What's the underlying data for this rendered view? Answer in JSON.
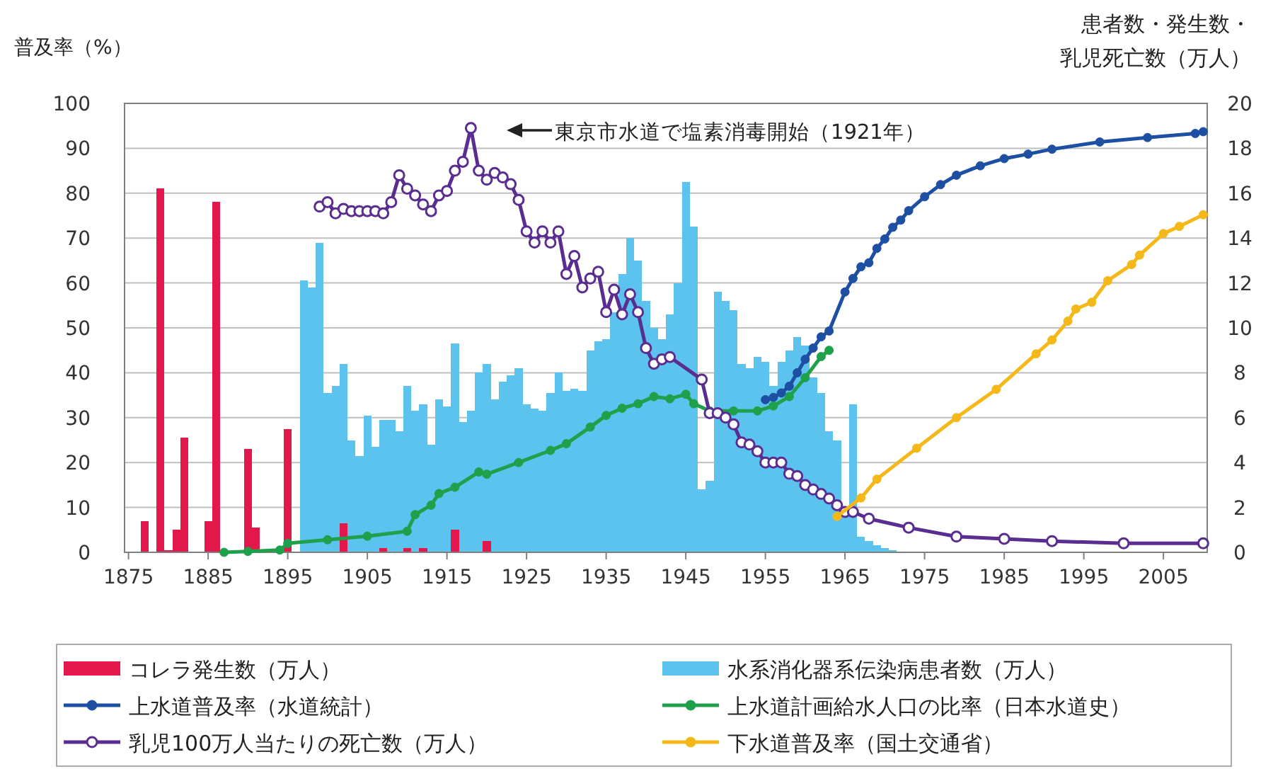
{
  "chart_data": {
    "type": "line",
    "ylabel": "普及率（%）",
    "y2label": "患者数・発生数・乳児死亡数（万人）",
    "xlim": [
      1874.5,
      2010.5
    ],
    "xticks": [
      1875,
      1885,
      1895,
      1905,
      1915,
      1925,
      1935,
      1945,
      1955,
      1965,
      1975,
      1985,
      1995,
      2005
    ],
    "ylim": [
      0,
      100
    ],
    "yticks": [
      0,
      10,
      20,
      30,
      40,
      50,
      60,
      70,
      80,
      90,
      100
    ],
    "y2lim": [
      0,
      20
    ],
    "y2ticks": [
      0,
      2,
      4,
      6,
      8,
      10,
      12,
      14,
      16,
      18,
      20
    ],
    "grid": "y",
    "legend": "bottom",
    "marker": "circle",
    "annotations": [
      "東京市水道で塩素消毒開始（1921年）"
    ],
    "series": [
      {
        "name": "コレラ発生数（万人）",
        "type": "bar",
        "axis": "y2",
        "color": "#e2184c",
        "x": [
          1877,
          1879,
          1880,
          1881,
          1882,
          1885,
          1886,
          1890,
          1891,
          1895,
          1902,
          1907,
          1910,
          1912,
          1916,
          1920
        ],
        "values": [
          1.4,
          16.2,
          0.1,
          1.0,
          5.1,
          1.4,
          15.6,
          4.6,
          1.1,
          5.5,
          1.3,
          0.2,
          0.2,
          0.2,
          1.0,
          0.5
        ]
      },
      {
        "name": "水系消化器系伝染病患者数（万人）",
        "type": "bar",
        "axis": "y2",
        "color": "#5bc3ee",
        "x": [
          1897,
          1898,
          1899,
          1900,
          1901,
          1902,
          1903,
          1904,
          1905,
          1906,
          1907,
          1908,
          1909,
          1910,
          1911,
          1912,
          1913,
          1914,
          1915,
          1916,
          1917,
          1918,
          1919,
          1920,
          1921,
          1922,
          1923,
          1924,
          1925,
          1926,
          1927,
          1928,
          1929,
          1930,
          1931,
          1932,
          1933,
          1934,
          1935,
          1936,
          1937,
          1938,
          1939,
          1940,
          1941,
          1942,
          1943,
          1944,
          1945,
          1946,
          1947,
          1948,
          1949,
          1950,
          1951,
          1952,
          1953,
          1954,
          1955,
          1956,
          1957,
          1958,
          1959,
          1960,
          1961,
          1962,
          1963,
          1964,
          1965,
          1966,
          1967,
          1968,
          1969,
          1970,
          1971
        ],
        "values": [
          12.1,
          11.8,
          13.8,
          7.1,
          7.4,
          8.4,
          5.0,
          4.3,
          6.1,
          4.7,
          5.9,
          5.9,
          5.4,
          7.4,
          6.3,
          6.6,
          4.8,
          6.8,
          6.5,
          9.3,
          5.8,
          6.3,
          8.0,
          8.4,
          6.8,
          7.6,
          7.9,
          8.2,
          6.6,
          6.4,
          6.3,
          7.1,
          8.0,
          7.2,
          7.3,
          7.2,
          9.0,
          9.4,
          9.5,
          10.7,
          12.4,
          14.0,
          13.0,
          11.2,
          10.0,
          9.5,
          10.6,
          12.0,
          16.5,
          14.5,
          2.8,
          3.2,
          11.6,
          11.2,
          10.8,
          8.4,
          8.2,
          8.7,
          8.5,
          7.4,
          8.5,
          9.0,
          9.6,
          9.2,
          7.8,
          7.1,
          5.4,
          5.0,
          1.8,
          6.6,
          0.7,
          0.5,
          0.3,
          0.2,
          0.1
        ]
      },
      {
        "name": "上水道普及率（水道統計）",
        "color": "#1d4fa3",
        "x": [
          1955,
          1956,
          1957,
          1958,
          1959,
          1960,
          1961,
          1962,
          1963,
          1965,
          1966,
          1967,
          1968,
          1969,
          1970,
          1971,
          1972,
          1973,
          1975,
          1977,
          1979,
          1982,
          1985,
          1988,
          1991,
          1997,
          2003,
          2009,
          2010
        ],
        "values": [
          34,
          34.5,
          35.5,
          37,
          40,
          43,
          45.5,
          48,
          49.3,
          58,
          61,
          63.6,
          64.5,
          67.7,
          69.8,
          72.4,
          74,
          76.1,
          79.2,
          81.9,
          84,
          86.1,
          87.7,
          88.7,
          89.8,
          91.4,
          92.4,
          93.3,
          93.7
        ]
      },
      {
        "name": "上水道計画給水人口の比率（日本水道史）",
        "color": "#1fa04a",
        "x": [
          1887,
          1890,
          1894,
          1895,
          1900,
          1905,
          1910,
          1911,
          1913,
          1914,
          1916,
          1919,
          1920,
          1924,
          1928,
          1930,
          1933,
          1935,
          1937,
          1939,
          1941,
          1943,
          1945,
          1946,
          1948,
          1951,
          1954,
          1956,
          1958,
          1960,
          1962,
          1963
        ],
        "values": [
          0,
          0.2,
          0.5,
          2,
          2.8,
          3.6,
          4.7,
          8.4,
          10.5,
          13.1,
          14.5,
          17.9,
          17.4,
          20,
          22.7,
          24.2,
          27.9,
          30.5,
          32.1,
          33.1,
          34.7,
          34.2,
          35.2,
          33.1,
          31.5,
          31.5,
          31.5,
          32.6,
          34.7,
          38.9,
          43.6,
          45
        ]
      },
      {
        "name": "乳児100万人当たりの死亡数（万人）",
        "axis": "y2",
        "color": "#5a2d91",
        "x": [
          1899,
          1900,
          1901,
          1902,
          1903,
          1904,
          1905,
          1906,
          1907,
          1908,
          1909,
          1910,
          1911,
          1912,
          1913,
          1914,
          1915,
          1916,
          1917,
          1918,
          1919,
          1920,
          1921,
          1922,
          1923,
          1924,
          1925,
          1926,
          1927,
          1928,
          1929,
          1930,
          1931,
          1932,
          1933,
          1934,
          1935,
          1936,
          1937,
          1938,
          1939,
          1940,
          1941,
          1942,
          1943,
          1947,
          1948,
          1949,
          1950,
          1951,
          1952,
          1953,
          1954,
          1955,
          1956,
          1957,
          1958,
          1959,
          1960,
          1961,
          1962,
          1963,
          1964,
          1965,
          1966,
          1968,
          1973,
          1979,
          1985,
          1991,
          2000,
          2010
        ],
        "values": [
          15.4,
          15.6,
          15.1,
          15.3,
          15.2,
          15.2,
          15.2,
          15.2,
          15.1,
          15.6,
          16.8,
          16.2,
          15.9,
          15.5,
          15.2,
          15.9,
          16.1,
          17.0,
          17.4,
          18.9,
          17.0,
          16.6,
          16.9,
          16.7,
          16.4,
          15.7,
          14.3,
          13.8,
          14.3,
          13.8,
          14.3,
          12.4,
          13.2,
          11.8,
          12.2,
          12.5,
          10.7,
          11.7,
          10.6,
          11.5,
          10.7,
          9.1,
          8.4,
          8.6,
          8.7,
          7.7,
          6.2,
          6.2,
          6.0,
          5.7,
          4.9,
          4.8,
          4.5,
          4.0,
          4.0,
          4.0,
          3.5,
          3.4,
          3.0,
          2.8,
          2.6,
          2.4,
          2.1,
          1.8,
          1.8,
          1.5,
          1.1,
          0.7,
          0.6,
          0.5,
          0.4,
          0.4
        ]
      },
      {
        "name": "下水道普及率（国土交通省）",
        "color": "#f5b819",
        "x": [
          1964,
          1967,
          1969,
          1974,
          1979,
          1984,
          1989,
          1991,
          1993,
          1994,
          1996,
          1998,
          2001,
          2002,
          2005,
          2007,
          2010
        ],
        "values": [
          8,
          12.1,
          16.3,
          23.2,
          30,
          36.3,
          44.2,
          47.3,
          51.5,
          54.2,
          55.7,
          60.5,
          64.1,
          66.2,
          71,
          72.6,
          75.2
        ]
      }
    ]
  }
}
